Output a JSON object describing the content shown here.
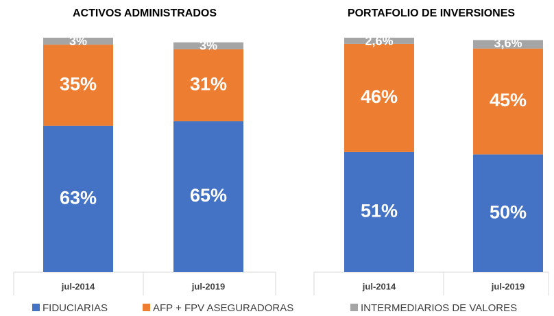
{
  "chart_data": [
    {
      "type": "stacked_bar",
      "title": "ACTIVOS ADMINISTRADOS",
      "categories": [
        "jul-2014",
        "jul-2019"
      ],
      "series": [
        {
          "name": "FIDUCIARIAS",
          "color": "#4472c4",
          "values": [
            63,
            65
          ],
          "value_labels": [
            "63%",
            "65%"
          ]
        },
        {
          "name": "AFP + FPV ASEGURADORAS",
          "color": "#ed7d31",
          "values": [
            35,
            31
          ],
          "value_labels": [
            "35%",
            "31%"
          ]
        },
        {
          "name": "INTERMEDIARIOS DE VALORES",
          "color": "#a5a5a5",
          "values": [
            3,
            3
          ],
          "value_labels": [
            "3%",
            "3%"
          ]
        }
      ]
    },
    {
      "type": "stacked_bar",
      "title": "PORTAFOLIO DE INVERSIONES",
      "categories": [
        "jul-2014",
        "jul-2019"
      ],
      "series": [
        {
          "color": "#4472c4",
          "values": [
            51,
            50
          ],
          "value_labels": [
            "51%",
            "50%"
          ]
        },
        {
          "color": "#ed7d31",
          "values": [
            46,
            45
          ],
          "value_labels": [
            "46%",
            "45%"
          ]
        },
        {
          "color": "#a5a5a5",
          "values": [
            2.6,
            3.6
          ],
          "value_labels": [
            "2,6%",
            "3,6%"
          ]
        }
      ]
    }
  ]
}
